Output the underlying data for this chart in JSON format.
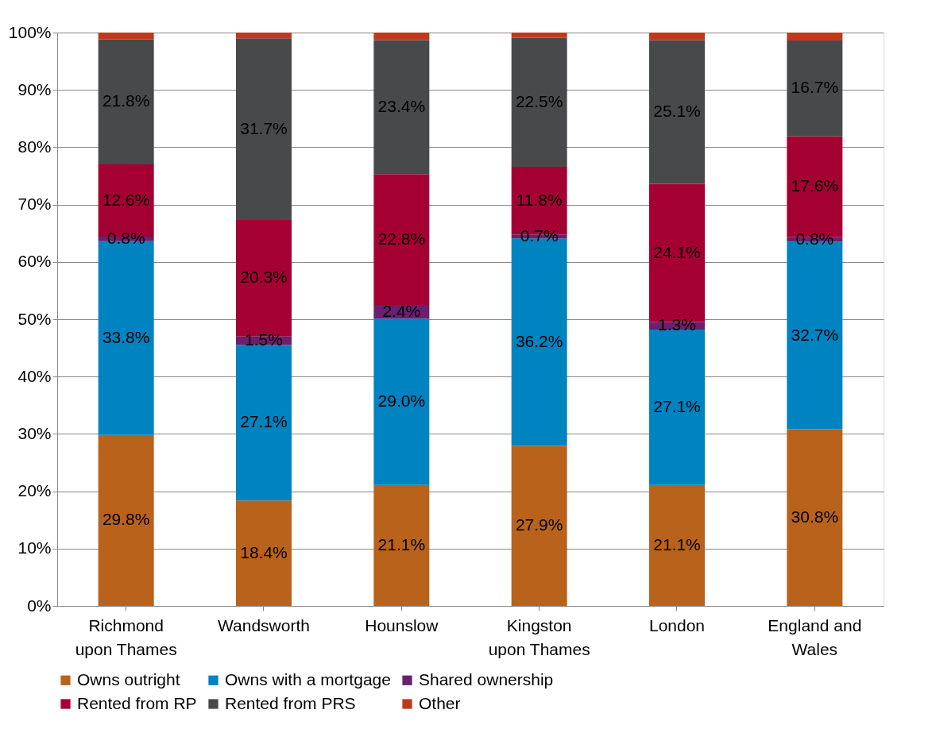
{
  "chart_data": {
    "type": "bar",
    "stacked": true,
    "categories": [
      "Richmond upon Thames",
      "Wandsworth",
      "Hounslow",
      "Kingston upon Thames",
      "London",
      "England and Wales"
    ],
    "series": [
      {
        "name": "Owns outright",
        "color": "#b9621b",
        "values": [
          29.8,
          18.4,
          21.1,
          27.9,
          21.1,
          30.8
        ],
        "value_labels": [
          "29.8%",
          "18.4%",
          "21.1%",
          "27.9%",
          "21.1%",
          "30.8%"
        ]
      },
      {
        "name": "Owns with a mortgage",
        "color": "#0083c1",
        "values": [
          33.8,
          27.1,
          29.0,
          36.2,
          27.1,
          32.7
        ],
        "value_labels": [
          "33.8%",
          "27.1%",
          "29.0%",
          "36.2%",
          "27.1%",
          "32.7%"
        ]
      },
      {
        "name": "Shared ownership",
        "color": "#6b1f6e",
        "values": [
          0.8,
          1.5,
          2.4,
          0.7,
          1.3,
          0.8
        ],
        "value_labels": [
          "0.8%",
          "1.5%",
          "2.4%",
          "0.7%",
          "1.3%",
          "0.8%"
        ]
      },
      {
        "name": "Rented from RP",
        "color": "#a50034",
        "values": [
          12.6,
          20.3,
          22.8,
          11.8,
          24.1,
          17.6
        ],
        "value_labels": [
          "12.6%",
          "20.3%",
          "22.8%",
          "11.8%",
          "24.1%",
          "17.6%"
        ]
      },
      {
        "name": "Rented from PRS",
        "color": "#48494b",
        "values": [
          21.8,
          31.7,
          23.4,
          22.5,
          25.1,
          16.7
        ],
        "value_labels": [
          "21.8%",
          "31.7%",
          "23.4%",
          "22.5%",
          "25.1%",
          "16.7%"
        ]
      },
      {
        "name": "Other",
        "color": "#c0391b",
        "values": [
          1.2,
          1.0,
          1.3,
          0.9,
          1.3,
          1.4
        ]
      }
    ],
    "ylim": [
      0,
      100
    ],
    "yticks": [
      {
        "value": 0,
        "label": "0%"
      },
      {
        "value": 10,
        "label": "10%"
      },
      {
        "value": 20,
        "label": "20%"
      },
      {
        "value": 30,
        "label": "30%"
      },
      {
        "value": 40,
        "label": "40%"
      },
      {
        "value": 50,
        "label": "50%"
      },
      {
        "value": 60,
        "label": "60%"
      },
      {
        "value": 70,
        "label": "70%"
      },
      {
        "value": 80,
        "label": "80%"
      },
      {
        "value": 90,
        "label": "90%"
      },
      {
        "value": 100,
        "label": "100%"
      }
    ],
    "grid": "y",
    "legend": "bottom"
  }
}
